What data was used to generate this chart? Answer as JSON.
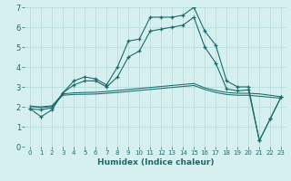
{
  "xlabel": "Humidex (Indice chaleur)",
  "background_color": "#d6f0f0",
  "grid_color": "#b8dede",
  "line_color": "#1a6b6b",
  "xlim": [
    -0.5,
    23.5
  ],
  "ylim": [
    0,
    7
  ],
  "xticks": [
    0,
    1,
    2,
    3,
    4,
    5,
    6,
    7,
    8,
    9,
    10,
    11,
    12,
    13,
    14,
    15,
    16,
    17,
    18,
    19,
    20,
    21,
    22,
    23
  ],
  "yticks": [
    0,
    1,
    2,
    3,
    4,
    5,
    6,
    7
  ],
  "series1": [
    1.9,
    1.5,
    1.85,
    2.7,
    3.3,
    3.5,
    3.4,
    3.1,
    4.0,
    5.3,
    5.4,
    6.5,
    6.5,
    6.5,
    6.6,
    7.0,
    5.8,
    5.1,
    3.3,
    3.0,
    3.0,
    0.3,
    1.4,
    2.5
  ],
  "series2": [
    1.9,
    1.85,
    1.95,
    2.7,
    3.1,
    3.3,
    3.3,
    3.0,
    3.5,
    4.5,
    4.8,
    5.8,
    5.9,
    6.0,
    6.1,
    6.5,
    5.0,
    4.2,
    2.9,
    2.8,
    2.85,
    0.3,
    1.4,
    2.5
  ],
  "series3": [
    2.0,
    2.0,
    2.05,
    2.65,
    2.7,
    2.72,
    2.73,
    2.77,
    2.82,
    2.87,
    2.92,
    2.97,
    3.02,
    3.07,
    3.12,
    3.17,
    2.95,
    2.82,
    2.72,
    2.68,
    2.68,
    2.65,
    2.58,
    2.5
  ],
  "series4": [
    2.05,
    1.95,
    2.02,
    2.58,
    2.62,
    2.63,
    2.64,
    2.68,
    2.72,
    2.77,
    2.82,
    2.87,
    2.92,
    2.97,
    3.02,
    3.07,
    2.87,
    2.72,
    2.62,
    2.58,
    2.58,
    2.53,
    2.48,
    2.43
  ]
}
